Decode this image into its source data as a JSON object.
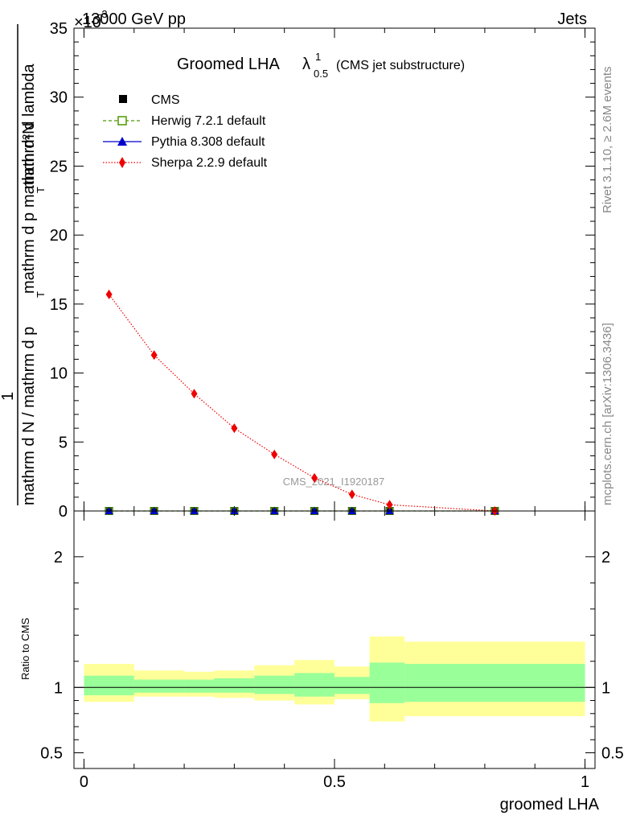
{
  "header": {
    "process": "13000 GeV pp",
    "category": "Jets",
    "exponent_label": "×10",
    "exponent_power": "-3"
  },
  "side_texts": {
    "rivet": "Rivet 3.1.10, ≥ 2.6M events",
    "mcplots": "mcplots.cern.ch [arXiv:1306.3436]"
  },
  "analysis_id": "CMS_2021_I1920187",
  "chart_data": [
    {
      "type": "line",
      "title_main": "Groomed LHA",
      "title_lambda": "λ",
      "title_sup": "1",
      "title_sub": "0.5",
      "title_note": "(CMS jet substructure)",
      "ylabel_numerator": "mathrm d²N",
      "ylabel_fraction_left": "1",
      "ylabel_denominator": "mathrm d N / mathrm d p",
      "ylabel_line2": "mathrm d p",
      "ylabel_line2_sub": "T",
      "ylabel_line2_rest": " mathrm d lambda",
      "ylabel_T": "T",
      "ylabel_mid": " mathrm d p",
      "ylim": [
        0,
        35
      ],
      "yticks": [
        0,
        5,
        10,
        15,
        20,
        25,
        30,
        35
      ],
      "xlim": [
        -0.02,
        1.02
      ],
      "series": [
        {
          "name": "CMS",
          "color": "#000000",
          "x": [
            0.05,
            0.14,
            0.22,
            0.3,
            0.38,
            0.46,
            0.535,
            0.61,
            0.82
          ],
          "values": [
            0.0,
            0.0,
            0.0,
            0.0,
            0.0,
            0.0,
            0.0,
            0.0,
            0.0
          ]
        },
        {
          "name": "Herwig 7.2.1 default",
          "color": "#4d9900",
          "x": [
            0.05,
            0.14,
            0.22,
            0.3,
            0.38,
            0.46,
            0.535,
            0.61,
            0.82
          ],
          "values": [
            0.0,
            0.0,
            0.0,
            0.0,
            0.0,
            0.0,
            0.0,
            0.0,
            0.0
          ]
        },
        {
          "name": "Pythia 8.308 default",
          "color": "#0000cc",
          "x": [
            0.05,
            0.14,
            0.22,
            0.3,
            0.38,
            0.46,
            0.535,
            0.61,
            0.82
          ],
          "values": [
            0.0,
            0.0,
            0.0,
            0.0,
            0.0,
            0.0,
            0.0,
            0.0,
            0.0
          ]
        },
        {
          "name": "Sherpa 2.2.9 default",
          "color": "#ee0000",
          "x": [
            0.05,
            0.14,
            0.22,
            0.3,
            0.38,
            0.46,
            0.535,
            0.61,
            0.82
          ],
          "values": [
            15.7,
            11.3,
            8.5,
            6.0,
            4.1,
            2.4,
            1.2,
            0.45,
            0.0
          ]
        }
      ]
    },
    {
      "type": "area",
      "ylabel": "Ratio to CMS",
      "xlabel": "groomed LHA",
      "ylim": [
        0.38,
        2.35
      ],
      "yticks": [
        0.5,
        1,
        2
      ],
      "ytick_labels": [
        "0.5",
        "1",
        "2"
      ],
      "xticks": [
        0,
        0.5,
        1
      ],
      "xtick_labels": [
        "0",
        "0.5",
        "1"
      ],
      "reference_line": 1,
      "bands": {
        "bins": [
          [
            0.0,
            0.1
          ],
          [
            0.1,
            0.2
          ],
          [
            0.2,
            0.26
          ],
          [
            0.26,
            0.34
          ],
          [
            0.34,
            0.42
          ],
          [
            0.42,
            0.5
          ],
          [
            0.5,
            0.57
          ],
          [
            0.57,
            0.64
          ],
          [
            0.64,
            1.0
          ]
        ],
        "yellow_low": [
          0.89,
          0.93,
          0.93,
          0.92,
          0.9,
          0.87,
          0.91,
          0.74,
          0.78
        ],
        "yellow_high": [
          1.18,
          1.13,
          1.12,
          1.13,
          1.17,
          1.21,
          1.16,
          1.39,
          1.35
        ],
        "green_low": [
          0.94,
          0.96,
          0.96,
          0.96,
          0.95,
          0.93,
          0.95,
          0.88,
          0.89
        ],
        "green_high": [
          1.09,
          1.06,
          1.06,
          1.07,
          1.09,
          1.11,
          1.08,
          1.19,
          1.18
        ],
        "yellow_color": "#ffff99",
        "green_color": "#99ff99"
      }
    }
  ]
}
